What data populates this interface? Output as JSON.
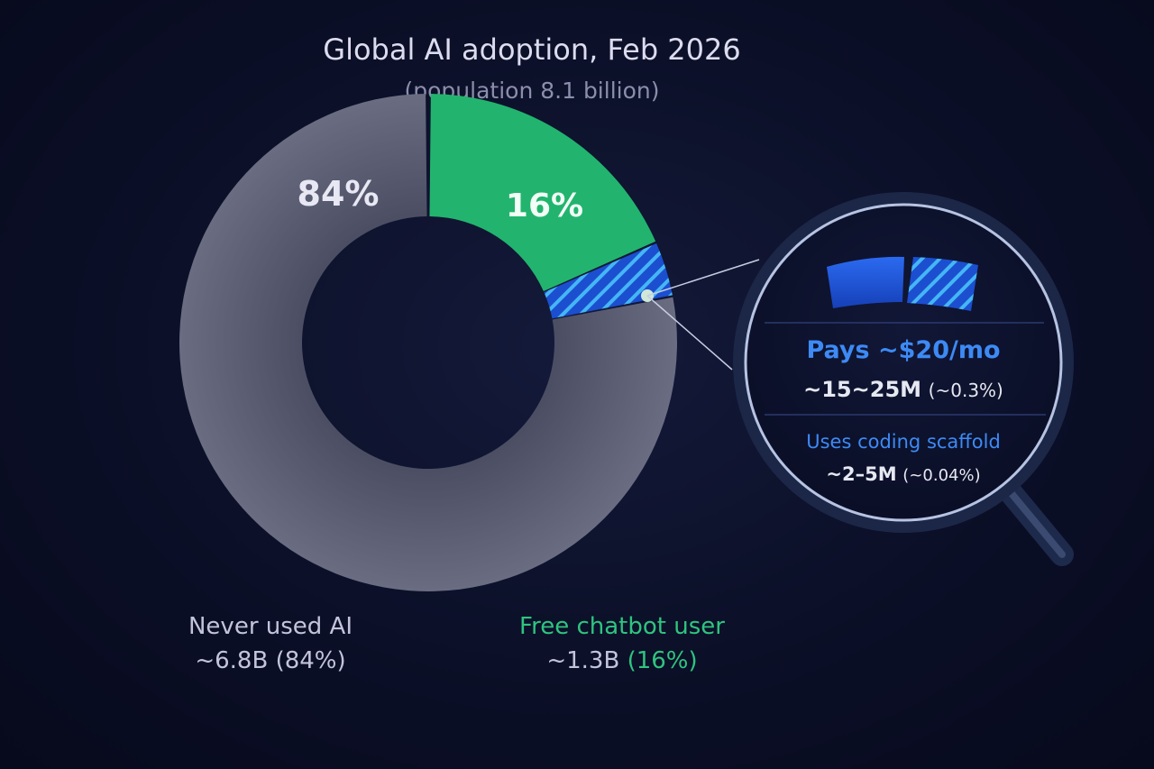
{
  "chart_data": {
    "type": "pie",
    "title": "Global AI adoption, Feb 2026",
    "subtitle": "(population 8.1 billion)",
    "slices": [
      {
        "name": "Never used AI",
        "value": 84,
        "label": "84%",
        "amount": "~6.8B",
        "pct_text": "(84%)",
        "color": "#5b5d72"
      },
      {
        "name": "Free chatbot user",
        "value": 16,
        "label": "16%",
        "amount": "~1.3B",
        "pct_text": "(16%)",
        "color": "#22b46e"
      },
      {
        "name": "Pays ~$20/mo",
        "value": 0.3,
        "amount": "~15~25M",
        "pct_text": "(~0.3%)",
        "color": "#1e56d8",
        "pattern": "hatched"
      }
    ],
    "magnifier": {
      "rows": [
        {
          "title": "Pays ~$20/mo",
          "amount": "~15~25M",
          "pct_text": "(~0.3%)"
        },
        {
          "title": "Uses coding scaffold",
          "amount": "~2–5M",
          "pct_text": "(~0.04%)"
        }
      ]
    },
    "legend_placement": "bottom"
  }
}
